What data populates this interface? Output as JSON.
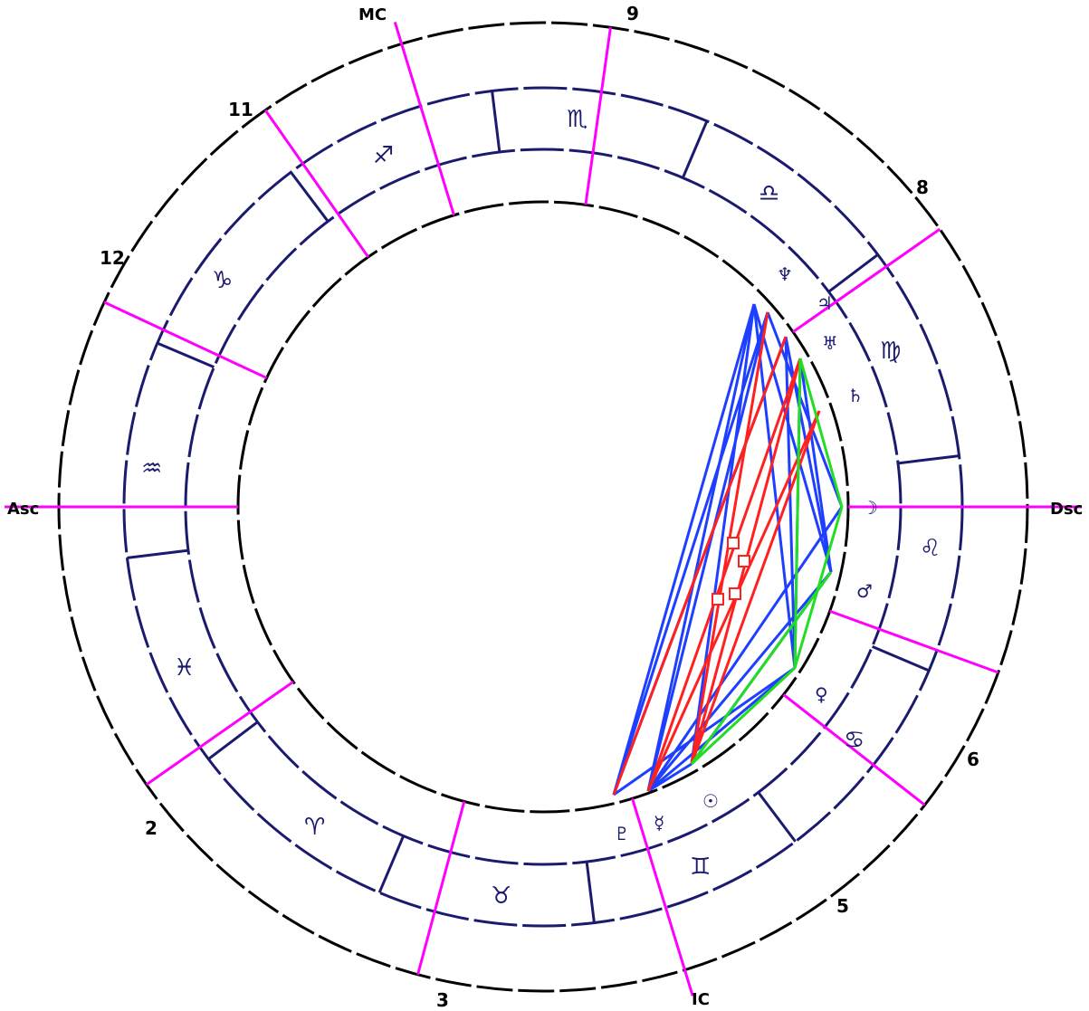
{
  "chart": {
    "angle_labels": {
      "asc": "Asc",
      "dsc": "Dsc",
      "mc": "MC",
      "ic": "IC"
    },
    "house_numbers": [
      "2",
      "3",
      "5",
      "6",
      "8",
      "9",
      "11",
      "12"
    ],
    "signs": [
      {
        "name": "aries",
        "glyph": "♈"
      },
      {
        "name": "taurus",
        "glyph": "♉"
      },
      {
        "name": "gemini",
        "glyph": "♊"
      },
      {
        "name": "cancer",
        "glyph": "♋"
      },
      {
        "name": "leo",
        "glyph": "♌"
      },
      {
        "name": "virgo",
        "glyph": "♍"
      },
      {
        "name": "libra",
        "glyph": "♎"
      },
      {
        "name": "scorpio",
        "glyph": "♏"
      },
      {
        "name": "sagittarius",
        "glyph": "♐"
      },
      {
        "name": "capricorn",
        "glyph": "♑"
      },
      {
        "name": "aquarius",
        "glyph": "♒"
      },
      {
        "name": "pisces",
        "glyph": "♓"
      }
    ],
    "planets": [
      {
        "name": "neptune",
        "glyph": "♆"
      },
      {
        "name": "jupiter",
        "glyph": "♃"
      },
      {
        "name": "uranus",
        "glyph": "♅"
      },
      {
        "name": "saturn",
        "glyph": "♄"
      },
      {
        "name": "moon",
        "glyph": "☽"
      },
      {
        "name": "mars",
        "glyph": "♂"
      },
      {
        "name": "venus",
        "glyph": "♀"
      },
      {
        "name": "sun",
        "glyph": "☉"
      },
      {
        "name": "mercury",
        "glyph": "☿"
      },
      {
        "name": "pluto",
        "glyph": "♇"
      },
      {
        "name": "node",
        "glyph": "☊"
      }
    ],
    "colors": {
      "ring": "#000000",
      "sign_divider": "#1a1a6e",
      "house_cusp": "#ff00ff",
      "aspect_blue": "#1f3fff",
      "aspect_red": "#ff2020",
      "aspect_green": "#22dd22"
    }
  }
}
